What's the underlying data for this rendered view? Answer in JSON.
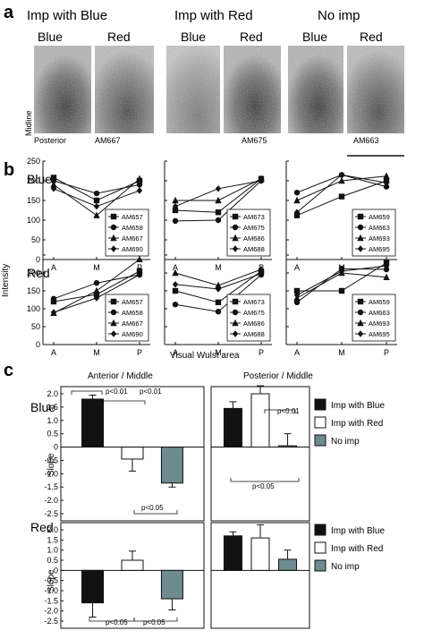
{
  "panel_a": {
    "letter": "a",
    "groups": [
      {
        "title": "Imp with Blue",
        "left_label": "Blue",
        "right_label": "Red",
        "animal": "AM667"
      },
      {
        "title": "Imp with Red",
        "left_label": "Blue",
        "right_label": "Red",
        "animal": "AM675"
      },
      {
        "title": "No imp",
        "left_label": "Blue",
        "right_label": "Red",
        "animal": "AM663"
      }
    ],
    "midline_label": "Midline",
    "posterior_label": "Posterior"
  },
  "panel_b": {
    "letter": "b",
    "y_label": "Intensity",
    "x_label": "Visual Wulst area",
    "row_labels": [
      "Blue",
      "Red"
    ],
    "x_ticks": [
      "A",
      "M",
      "P"
    ],
    "y_ticks": [
      "0",
      "50",
      "100",
      "150",
      "200",
      "250"
    ]
  },
  "panel_c": {
    "letter": "c",
    "col_titles": [
      "Anterior / Middle",
      "Posterior / Middle"
    ],
    "row_labels": [
      "Blue",
      "Red"
    ],
    "y_label": "Slope",
    "y_ticks": [
      "2.0",
      "1.5",
      "1.0",
      "0.5",
      "0",
      "-0.5",
      "-1.0",
      "-1.5",
      "-2.0",
      "-2.5"
    ],
    "legend": [
      "Imp with Blue",
      "Imp with Red",
      "No imp"
    ],
    "legend_colors": [
      "#111111",
      "#ffffff",
      "#6f8a90"
    ],
    "pvalues_blue_am": [
      "p<0.01",
      "p<0.01",
      "p<0.05"
    ],
    "pvalues_blue_pm": [
      "p<0.01",
      "p<0.05"
    ],
    "pvalues_red_am": [
      "p<0.05",
      "p<0.05"
    ]
  },
  "chart_data": [
    {
      "type": "line",
      "title": "Blue",
      "panel": "b-blue-imp-with-blue",
      "x": [
        "A",
        "M",
        "P"
      ],
      "ylim": [
        0,
        250
      ],
      "ylabel": "Intensity",
      "series": [
        {
          "name": "AM657",
          "marker": "square",
          "values": [
            208,
            150,
            200
          ]
        },
        {
          "name": "AM658",
          "marker": "circle",
          "values": [
            200,
            168,
            190
          ]
        },
        {
          "name": "AM667",
          "marker": "triangle",
          "values": [
            190,
            112,
            205
          ]
        },
        {
          "name": "AM690",
          "marker": "diamond",
          "values": [
            180,
            135,
            175
          ]
        }
      ]
    },
    {
      "type": "line",
      "panel": "b-blue-imp-with-red",
      "x": [
        "A",
        "M",
        "P"
      ],
      "ylim": [
        0,
        250
      ],
      "series": [
        {
          "name": "AM673",
          "marker": "square",
          "values": [
            125,
            120,
            205
          ]
        },
        {
          "name": "AM675",
          "marker": "circle",
          "values": [
            98,
            100,
            200
          ]
        },
        {
          "name": "AM686",
          "marker": "triangle",
          "values": [
            150,
            150,
            205
          ]
        },
        {
          "name": "AM688",
          "marker": "diamond",
          "values": [
            135,
            180,
            200
          ]
        }
      ]
    },
    {
      "type": "line",
      "panel": "b-blue-no-imp",
      "x": [
        "A",
        "M",
        "P"
      ],
      "ylim": [
        0,
        250
      ],
      "series": [
        {
          "name": "AM659",
          "marker": "square",
          "values": [
            112,
            160,
            200
          ]
        },
        {
          "name": "AM663",
          "marker": "circle",
          "values": [
            170,
            215,
            185
          ]
        },
        {
          "name": "AM693",
          "marker": "triangle",
          "values": [
            150,
            200,
            212
          ]
        },
        {
          "name": "AM695",
          "marker": "diamond",
          "values": [
            120,
            215,
            195
          ]
        }
      ]
    },
    {
      "type": "line",
      "title": "Red",
      "panel": "b-red-imp-with-blue",
      "x": [
        "A",
        "M",
        "P"
      ],
      "ylim": [
        0,
        250
      ],
      "xlabel": "Visual Wulst area",
      "series": [
        {
          "name": "AM657",
          "marker": "square",
          "values": [
            120,
            140,
            205
          ]
        },
        {
          "name": "AM658",
          "marker": "circle",
          "values": [
            128,
            172,
            195
          ]
        },
        {
          "name": "AM667",
          "marker": "triangle",
          "values": [
            88,
            150,
            238
          ]
        },
        {
          "name": "AM690",
          "marker": "diamond",
          "values": [
            90,
            130,
            195
          ]
        }
      ]
    },
    {
      "type": "line",
      "panel": "b-red-imp-with-red",
      "x": [
        "A",
        "M",
        "P"
      ],
      "ylim": [
        0,
        250
      ],
      "xlabel": "Visual Wulst area",
      "series": [
        {
          "name": "AM673",
          "marker": "square",
          "values": [
            150,
            118,
            205
          ]
        },
        {
          "name": "AM675",
          "marker": "circle",
          "values": [
            112,
            92,
            195
          ]
        },
        {
          "name": "AM686",
          "marker": "triangle",
          "values": [
            200,
            165,
            210
          ]
        },
        {
          "name": "AM688",
          "marker": "diamond",
          "values": [
            168,
            155,
            198
          ]
        }
      ]
    },
    {
      "type": "line",
      "panel": "b-red-no-imp",
      "x": [
        "A",
        "M",
        "P"
      ],
      "ylim": [
        0,
        250
      ],
      "xlabel": "Visual Wulst area",
      "series": [
        {
          "name": "AM659",
          "marker": "square",
          "values": [
            150,
            150,
            228
          ]
        },
        {
          "name": "AM663",
          "marker": "circle",
          "values": [
            118,
            212,
            210
          ]
        },
        {
          "name": "AM693",
          "marker": "triangle",
          "values": [
            130,
            200,
            188
          ]
        },
        {
          "name": "AM695",
          "marker": "diamond",
          "values": [
            138,
            205,
            220
          ]
        }
      ]
    },
    {
      "type": "bar",
      "title": "Blue",
      "panel": "c-blue-anterior-middle",
      "categories": [
        "Imp with Blue",
        "Imp with Red",
        "No imp"
      ],
      "values": [
        1.8,
        -0.45,
        -1.35
      ],
      "errors": [
        0.15,
        0.45,
        0.15
      ],
      "ylim": [
        -2.5,
        2.0
      ],
      "ylabel": "Slope"
    },
    {
      "type": "bar",
      "panel": "c-blue-posterior-middle",
      "categories": [
        "Imp with Blue",
        "Imp with Red",
        "No imp"
      ],
      "values": [
        1.45,
        2.0,
        0.05
      ],
      "errors": [
        0.25,
        0.3,
        0.45
      ],
      "ylim": [
        -2.5,
        2.0
      ]
    },
    {
      "type": "bar",
      "title": "Red",
      "panel": "c-red-anterior-middle",
      "categories": [
        "Imp with Blue",
        "Imp with Red",
        "No imp"
      ],
      "values": [
        -1.6,
        0.5,
        -1.4
      ],
      "errors": [
        0.7,
        0.45,
        0.55
      ],
      "ylim": [
        -2.5,
        2.0
      ],
      "ylabel": "Slope"
    },
    {
      "type": "bar",
      "panel": "c-red-posterior-middle",
      "categories": [
        "Imp with Blue",
        "Imp with Red",
        "No imp"
      ],
      "values": [
        1.7,
        1.6,
        0.55
      ],
      "errors": [
        0.2,
        0.65,
        0.45
      ],
      "ylim": [
        -2.5,
        2.0
      ]
    }
  ]
}
